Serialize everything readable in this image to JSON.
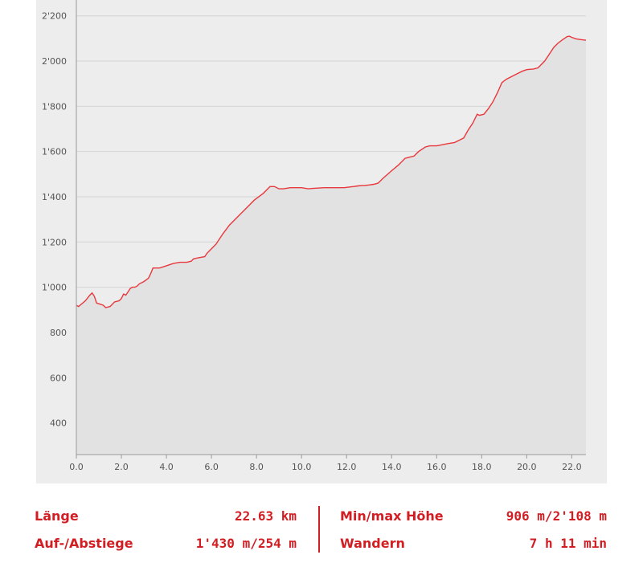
{
  "chart_data": {
    "type": "area",
    "title": "",
    "xlabel": "",
    "ylabel": "",
    "xlim": [
      0,
      22.63
    ],
    "ylim": [
      260,
      2270
    ],
    "x_ticks": [
      "0.0",
      "2.0",
      "4.0",
      "6.0",
      "8.0",
      "10.0",
      "12.0",
      "14.0",
      "16.0",
      "18.0",
      "20.0",
      "22.0"
    ],
    "x_tick_values": [
      0,
      2,
      4,
      6,
      8,
      10,
      12,
      14,
      16,
      18,
      20,
      22
    ],
    "y_ticks": [
      "400",
      "600",
      "800",
      "1'000",
      "1'200",
      "1'400",
      "1'600",
      "1'800",
      "2'000",
      "2'200"
    ],
    "y_tick_values": [
      400,
      600,
      800,
      1000,
      1200,
      1400,
      1600,
      1800,
      2000,
      2200
    ],
    "grid": true,
    "colors": {
      "line": "#e8383d",
      "fill": "#e2e2e2",
      "grid": "#d4d4d4"
    },
    "series": [
      {
        "x": [
          0,
          0.1,
          0.4,
          0.6,
          0.7,
          0.8,
          0.9,
          1.2,
          1.3,
          1.5,
          1.7,
          1.9,
          2.0,
          2.1,
          2.2,
          2.4,
          2.5,
          2.6,
          2.7,
          2.8,
          3.0,
          3.2,
          3.3,
          3.4,
          3.5,
          3.7,
          4.0,
          4.3,
          4.6,
          4.7,
          4.9,
          5.1,
          5.2,
          5.4,
          5.7,
          5.8,
          6.0,
          6.2,
          6.5,
          6.8,
          7.0,
          7.3,
          7.6,
          7.9,
          8.3,
          8.6,
          8.8,
          9.0,
          9.2,
          9.5,
          10.0,
          10.3,
          10.5,
          11.0,
          11.5,
          11.9,
          12.1,
          12.3,
          12.5,
          12.7,
          12.8,
          13.0,
          13.2,
          13.4,
          13.6,
          14.0,
          14.3,
          14.6,
          14.8,
          15.0,
          15.2,
          15.5,
          15.7,
          16.0,
          16.5,
          16.8,
          17.0,
          17.2,
          17.4,
          17.6,
          17.8,
          17.9,
          18.1,
          18.3,
          18.5,
          18.7,
          18.9,
          19.1,
          19.3,
          19.5,
          19.8,
          20.0,
          20.3,
          20.5,
          20.8,
          21.0,
          21.2,
          21.4,
          21.6,
          21.8,
          21.9,
          22.0,
          22.2,
          22.4,
          22.63
        ],
        "y": [
          920,
          915,
          940,
          965,
          975,
          960,
          930,
          920,
          910,
          915,
          935,
          940,
          950,
          970,
          965,
          995,
          1000,
          1000,
          1005,
          1015,
          1025,
          1040,
          1060,
          1085,
          1085,
          1085,
          1095,
          1105,
          1110,
          1110,
          1110,
          1115,
          1125,
          1130,
          1135,
          1150,
          1170,
          1190,
          1235,
          1275,
          1295,
          1325,
          1355,
          1385,
          1415,
          1445,
          1445,
          1435,
          1435,
          1440,
          1440,
          1435,
          1437,
          1440,
          1440,
          1440,
          1443,
          1445,
          1448,
          1450,
          1450,
          1452,
          1455,
          1460,
          1480,
          1515,
          1540,
          1570,
          1575,
          1580,
          1600,
          1620,
          1625,
          1625,
          1635,
          1640,
          1650,
          1660,
          1695,
          1725,
          1765,
          1760,
          1765,
          1790,
          1820,
          1860,
          1905,
          1920,
          1930,
          1940,
          1955,
          1962,
          1965,
          1970,
          2000,
          2030,
          2060,
          2080,
          2095,
          2108,
          2110,
          2105,
          2098,
          2095,
          2092
        ]
      }
    ]
  },
  "stats": {
    "length_label": "Länge",
    "length_value": "22.63 km",
    "ascent_label": "Auf-/Abstiege",
    "ascent_value": "1'430 m/254 m",
    "minmax_label": "Min/max Höhe",
    "minmax_value": "906 m/2'108 m",
    "activity_label": "Wandern",
    "activity_value": "7 h 11 min"
  }
}
